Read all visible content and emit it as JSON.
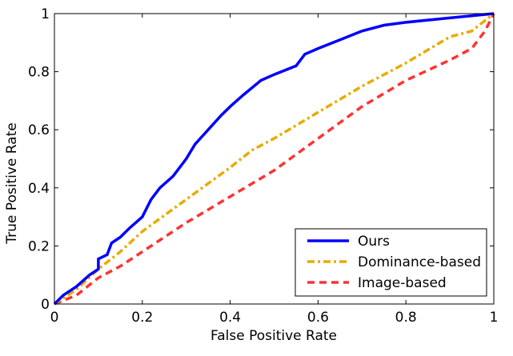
{
  "chart_data": {
    "type": "line",
    "title": "",
    "xlabel": "False Positive Rate",
    "ylabel": "True Positive Rate",
    "xlim": [
      0,
      1
    ],
    "ylim": [
      0,
      1
    ],
    "xticks": [
      "0",
      "0.2",
      "0.4",
      "0.6",
      "0.8",
      "1"
    ],
    "yticks": [
      "0",
      "0.2",
      "0.4",
      "0.6",
      "0.8",
      "1"
    ],
    "xtick_values": [
      0,
      0.2,
      0.4,
      0.6,
      0.8,
      1
    ],
    "ytick_values": [
      0,
      0.2,
      0.4,
      0.6,
      0.8,
      1
    ],
    "grid": false,
    "legend_position": "bottom-right",
    "series": [
      {
        "name": "Ours",
        "color": "#0000ff",
        "style": "solid",
        "x": [
          0,
          0.02,
          0.05,
          0.08,
          0.1,
          0.1,
          0.12,
          0.13,
          0.15,
          0.17,
          0.2,
          0.22,
          0.24,
          0.27,
          0.3,
          0.32,
          0.35,
          0.38,
          0.4,
          0.43,
          0.47,
          0.5,
          0.55,
          0.57,
          0.6,
          0.65,
          0.7,
          0.75,
          0.8,
          0.9,
          1
        ],
        "y": [
          0,
          0.03,
          0.06,
          0.1,
          0.12,
          0.155,
          0.17,
          0.21,
          0.23,
          0.26,
          0.3,
          0.36,
          0.4,
          0.44,
          0.5,
          0.55,
          0.6,
          0.65,
          0.68,
          0.72,
          0.77,
          0.79,
          0.82,
          0.86,
          0.88,
          0.91,
          0.94,
          0.96,
          0.97,
          0.985,
          1
        ]
      },
      {
        "name": "Dominance-based",
        "color": "#e6ac00",
        "style": "dashdot",
        "x": [
          0,
          0.05,
          0.1,
          0.15,
          0.2,
          0.3,
          0.4,
          0.45,
          0.5,
          0.6,
          0.7,
          0.8,
          0.9,
          0.95,
          1
        ],
        "y": [
          0,
          0.05,
          0.12,
          0.18,
          0.25,
          0.36,
          0.47,
          0.53,
          0.57,
          0.66,
          0.75,
          0.83,
          0.92,
          0.94,
          1
        ]
      },
      {
        "name": "Image-based",
        "color": "#ff3333",
        "style": "dashed",
        "x": [
          0,
          0.05,
          0.1,
          0.15,
          0.2,
          0.3,
          0.4,
          0.5,
          0.6,
          0.7,
          0.8,
          0.9,
          0.95,
          0.98,
          1
        ],
        "y": [
          0,
          0.03,
          0.09,
          0.13,
          0.18,
          0.28,
          0.37,
          0.46,
          0.57,
          0.68,
          0.77,
          0.84,
          0.88,
          0.94,
          1
        ]
      }
    ]
  }
}
